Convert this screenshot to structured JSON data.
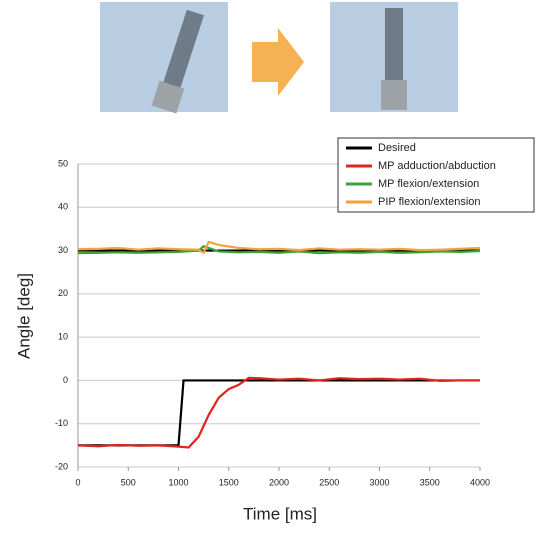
{
  "chart_data": {
    "type": "line",
    "xlabel": "Time [ms]",
    "ylabel": "Angle [deg]",
    "xlim": [
      0,
      4000
    ],
    "xticks": [
      0,
      500,
      1000,
      1500,
      2000,
      2500,
      3000,
      3500,
      4000
    ],
    "ylim": [
      -20,
      50
    ],
    "yticks": [
      -20,
      -10,
      0,
      10,
      20,
      30,
      40,
      50
    ],
    "grid": true,
    "legend": "upper right",
    "series": [
      {
        "name": "Desired",
        "color": "#000000",
        "x": [
          0,
          1000,
          1050,
          4000,
          4000,
          0,
          4000
        ],
        "values": [
          -15,
          -15,
          0,
          0,
          null,
          30,
          30
        ]
      },
      {
        "name": "MP adduction/abduction",
        "color": "#e0231c",
        "x": [
          0,
          200,
          400,
          600,
          800,
          1000,
          1100,
          1200,
          1300,
          1400,
          1500,
          1600,
          1700,
          1800,
          2000,
          2200,
          2400,
          2600,
          2800,
          3000,
          3200,
          3400,
          3600,
          3800,
          4000
        ],
        "values": [
          -15,
          -15.2,
          -14.9,
          -15.1,
          -15,
          -15.3,
          -15.5,
          -13,
          -8,
          -4,
          -2,
          -1,
          0.6,
          0.5,
          0.2,
          0.4,
          0,
          0.5,
          0.3,
          0.4,
          0.2,
          0.4,
          -0.1,
          0,
          0
        ]
      },
      {
        "name": "MP flexion/extension",
        "color": "#3aa23a",
        "x": [
          0,
          200,
          400,
          600,
          800,
          1000,
          1200,
          1250,
          1400,
          1600,
          1800,
          2000,
          2200,
          2400,
          2600,
          2800,
          3000,
          3200,
          3400,
          3600,
          3800,
          4000
        ],
        "values": [
          29.4,
          29.5,
          29.6,
          29.5,
          29.6,
          29.7,
          30,
          31,
          29.8,
          29.6,
          29.7,
          29.5,
          29.8,
          29.4,
          29.6,
          29.5,
          29.7,
          29.5,
          29.6,
          29.8,
          29.7,
          29.9
        ]
      },
      {
        "name": "PIP flexion/extension",
        "color": "#f5a23a",
        "x": [
          0,
          200,
          400,
          600,
          800,
          1000,
          1200,
          1250,
          1300,
          1400,
          1600,
          1800,
          2000,
          2200,
          2400,
          2600,
          2800,
          3000,
          3200,
          3400,
          3600,
          3800,
          4000
        ],
        "values": [
          30.3,
          30.4,
          30.6,
          30.2,
          30.5,
          30.3,
          30.2,
          29.5,
          32,
          31.3,
          30.6,
          30.3,
          30.4,
          30.1,
          30.5,
          30.2,
          30.3,
          30.2,
          30.4,
          30.1,
          30.2,
          30.4,
          30.6
        ]
      }
    ]
  }
}
